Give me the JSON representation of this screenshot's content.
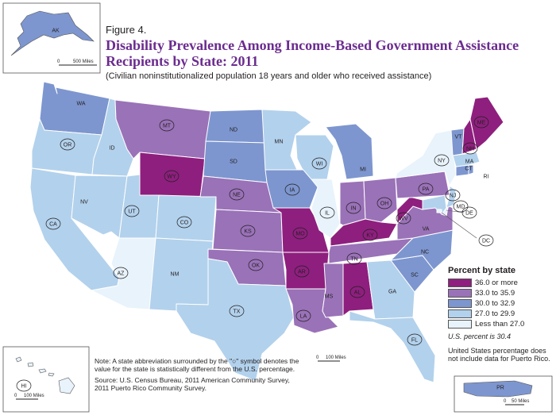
{
  "figure_label": "Figure 4.",
  "title_line1": "Disability Prevalence Among Income-Based Government Assistance",
  "title_line2": "Recipients by State: 2011",
  "subtitle": "(Civilian noninstitutionalized population 18 years and older who received assistance)",
  "colors": {
    "c36": "#8e1f7e",
    "c33": "#9a72b8",
    "c30": "#7d96cf",
    "c27": "#b2d1ec",
    "c0": "#e8f3fb",
    "border": "#ffffff",
    "outline": "#555555"
  },
  "legend": {
    "title": "Percent by state",
    "items": [
      {
        "label": "36.0 or more",
        "color": "#8e1f7e"
      },
      {
        "label": "33.0 to 35.9",
        "color": "#9a72b8"
      },
      {
        "label": "30.0 to 32.9",
        "color": "#7d96cf"
      },
      {
        "label": "27.0 to 29.9",
        "color": "#b2d1ec"
      },
      {
        "label": "Less than 27.0",
        "color": "#e8f3fb"
      }
    ],
    "us_percent": "U.S. percent is 30.4",
    "pr_note": "United States percentage does not include data for Puerto Rico."
  },
  "footnote": {
    "note": "Note: A state abbreviation surrounded by the \"○\" symbol denotes the value for the state is statistically different from the U.S. percentage.",
    "source_line1": "Source: U.S. Census Bureau, 2011 American Community Survey,",
    "source_line2": "2011 Puerto Rico Community Survey."
  },
  "scales": {
    "ak_zero": "0",
    "ak_label": "500 Miles",
    "main_zero": "0",
    "main_label": "100 Miles",
    "hi_zero": "0",
    "hi_label": "100 Miles",
    "pr_zero": "0",
    "pr_label": "50 Miles"
  },
  "states": {
    "WA": {
      "label": "WA",
      "cls": "c30",
      "circled": false
    },
    "OR": {
      "label": "OR",
      "cls": "c27",
      "circled": true
    },
    "CA": {
      "label": "CA",
      "cls": "c27",
      "circled": true
    },
    "ID": {
      "label": "ID",
      "cls": "c27",
      "circled": false
    },
    "NV": {
      "label": "NV",
      "cls": "c27",
      "circled": false
    },
    "UT": {
      "label": "UT",
      "cls": "c27",
      "circled": true
    },
    "AZ": {
      "label": "AZ",
      "cls": "c0",
      "circled": true
    },
    "MT": {
      "label": "MT",
      "cls": "c33",
      "circled": true
    },
    "WY": {
      "label": "WY",
      "cls": "c36",
      "circled": true
    },
    "CO": {
      "label": "CO",
      "cls": "c27",
      "circled": true
    },
    "NM": {
      "label": "NM",
      "cls": "c27",
      "circled": false
    },
    "ND": {
      "label": "ND",
      "cls": "c30",
      "circled": false
    },
    "SD": {
      "label": "SD",
      "cls": "c30",
      "circled": false
    },
    "NE": {
      "label": "NE",
      "cls": "c33",
      "circled": true
    },
    "KS": {
      "label": "KS",
      "cls": "c33",
      "circled": true
    },
    "OK": {
      "label": "OK",
      "cls": "c33",
      "circled": true
    },
    "TX": {
      "label": "TX",
      "cls": "c27",
      "circled": true
    },
    "MN": {
      "label": "MN",
      "cls": "c27",
      "circled": false
    },
    "IA": {
      "label": "IA",
      "cls": "c30",
      "circled": true
    },
    "MO": {
      "label": "MO",
      "cls": "c36",
      "circled": true
    },
    "AR": {
      "label": "AR",
      "cls": "c36",
      "circled": true
    },
    "LA": {
      "label": "LA",
      "cls": "c33",
      "circled": true
    },
    "WI": {
      "label": "WI",
      "cls": "c27",
      "circled": true
    },
    "IL": {
      "label": "IL",
      "cls": "c0",
      "circled": true
    },
    "MI": {
      "label": "MI",
      "cls": "c30",
      "circled": false
    },
    "IN": {
      "label": "IN",
      "cls": "c33",
      "circled": true
    },
    "OH": {
      "label": "OH",
      "cls": "c33",
      "circled": true
    },
    "KY": {
      "label": "KY",
      "cls": "c36",
      "circled": true
    },
    "TN": {
      "label": "TN",
      "cls": "c33",
      "circled": true
    },
    "MS": {
      "label": "MS",
      "cls": "c33",
      "circled": false
    },
    "AL": {
      "label": "AL",
      "cls": "c36",
      "circled": true
    },
    "GA": {
      "label": "GA",
      "cls": "c27",
      "circled": false
    },
    "FL": {
      "label": "FL",
      "cls": "c27",
      "circled": true
    },
    "SC": {
      "label": "SC",
      "cls": "c30",
      "circled": false
    },
    "NC": {
      "label": "NC",
      "cls": "c30",
      "circled": false
    },
    "VA": {
      "label": "VA",
      "cls": "c33",
      "circled": false
    },
    "WV": {
      "label": "WV",
      "cls": "c36",
      "circled": true
    },
    "PA": {
      "label": "PA",
      "cls": "c33",
      "circled": true
    },
    "NY": {
      "label": "NY",
      "cls": "c0",
      "circled": true
    },
    "NJ": {
      "label": "NJ",
      "cls": "c27",
      "circled": true
    },
    "DE": {
      "label": "DE",
      "cls": "c0",
      "circled": true
    },
    "MD": {
      "label": "MD",
      "cls": "c27",
      "circled": true
    },
    "DC": {
      "label": "DC",
      "cls": "c0",
      "circled": true
    },
    "CT": {
      "label": "CT",
      "cls": "c30",
      "circled": false
    },
    "RI": {
      "label": "RI",
      "cls": "c30",
      "circled": false
    },
    "MA": {
      "label": "MA",
      "cls": "c27",
      "circled": false
    },
    "VT": {
      "label": "VT",
      "cls": "c30",
      "circled": false
    },
    "NH": {
      "label": "NH",
      "cls": "c36",
      "circled": true
    },
    "ME": {
      "label": "ME",
      "cls": "c36",
      "circled": true
    },
    "AK": {
      "label": "AK",
      "cls": "c30",
      "circled": false
    },
    "HI": {
      "label": "HI",
      "cls": "c0",
      "circled": true
    },
    "PR": {
      "label": "PR",
      "cls": "c30",
      "circled": false
    }
  }
}
